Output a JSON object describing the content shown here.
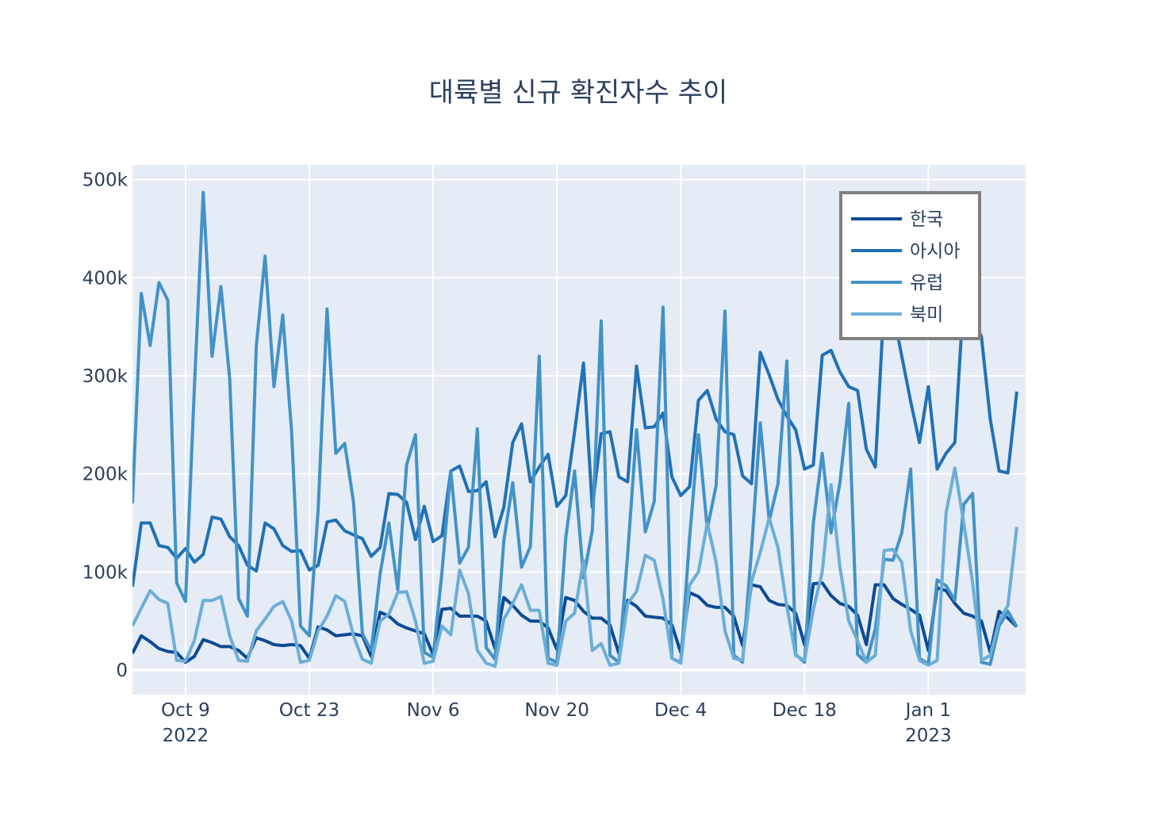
{
  "chart_data": {
    "type": "line",
    "title": "대륙별 신규 확진자수 추이",
    "xlabel": "",
    "ylabel": "",
    "x_start": "2022-10-03",
    "x_range": [
      "2022-10-03",
      "2023-01-12"
    ],
    "ylim": [
      -25000,
      515000
    ],
    "grid": true,
    "legend_position": "top-right",
    "x_ticks": [
      {
        "date": "2022-10-09",
        "label": "Oct 9",
        "sublabel": "2022"
      },
      {
        "date": "2022-10-23",
        "label": "Oct 23",
        "sublabel": ""
      },
      {
        "date": "2022-11-06",
        "label": "Nov 6",
        "sublabel": ""
      },
      {
        "date": "2022-11-20",
        "label": "Nov 20",
        "sublabel": ""
      },
      {
        "date": "2022-12-04",
        "label": "Dec 4",
        "sublabel": ""
      },
      {
        "date": "2022-12-18",
        "label": "Dec 18",
        "sublabel": ""
      },
      {
        "date": "2023-01-01",
        "label": "Jan 1",
        "sublabel": "2023"
      }
    ],
    "y_ticks": [
      {
        "value": 0,
        "label": "0"
      },
      {
        "value": 100000,
        "label": "100k"
      },
      {
        "value": 200000,
        "label": "200k"
      },
      {
        "value": 300000,
        "label": "300k"
      },
      {
        "value": 400000,
        "label": "400k"
      },
      {
        "value": 500000,
        "label": "500k"
      }
    ],
    "series": [
      {
        "name": "한국",
        "color": "#0d4a94",
        "values": [
          17000,
          35000,
          29000,
          22000,
          19000,
          18000,
          8000,
          14000,
          31000,
          28000,
          24000,
          24000,
          20000,
          12000,
          33000,
          30000,
          26000,
          25000,
          26000,
          25000,
          12000,
          44000,
          41000,
          35000,
          36000,
          37000,
          35000,
          14000,
          59000,
          55000,
          47000,
          43000,
          40000,
          37000,
          16000,
          62000,
          63000,
          55000,
          55000,
          55000,
          50000,
          22000,
          74000,
          66000,
          56000,
          50000,
          50000,
          43000,
          21000,
          74000,
          71000,
          60000,
          53000,
          53000,
          46000,
          17000,
          71000,
          65000,
          55000,
          54000,
          53000,
          46000,
          18000,
          79000,
          75000,
          66000,
          64000,
          64000,
          55000,
          25000,
          87000,
          85000,
          71000,
          67000,
          66000,
          58000,
          26000,
          88000,
          89000,
          76000,
          68000,
          65000,
          56000,
          26000,
          87000,
          87000,
          73000,
          67000,
          62000,
          56000,
          20000,
          84000,
          81000,
          68000,
          58000,
          55000,
          50000,
          18000,
          60000,
          53000,
          44000
        ]
      },
      {
        "name": "아시아",
        "color": "#2171b5",
        "values": [
          85000,
          150000,
          150000,
          127000,
          125000,
          114000,
          124000,
          110000,
          118000,
          156000,
          154000,
          136000,
          127000,
          107000,
          101000,
          150000,
          144000,
          127000,
          121000,
          122000,
          102000,
          107000,
          151000,
          153000,
          142000,
          138000,
          134000,
          116000,
          125000,
          180000,
          179000,
          171000,
          133000,
          167000,
          131000,
          137000,
          203000,
          208000,
          182000,
          183000,
          192000,
          136000,
          166000,
          232000,
          251000,
          192000,
          207000,
          220000,
          167000,
          178000,
          243000,
          313000,
          166000,
          241000,
          243000,
          197000,
          192000,
          310000,
          247000,
          248000,
          262000,
          197000,
          178000,
          187000,
          275000,
          285000,
          256000,
          243000,
          240000,
          198000,
          190000,
          324000,
          301000,
          276000,
          259000,
          245000,
          205000,
          209000,
          321000,
          326000,
          304000,
          289000,
          285000,
          225000,
          207000,
          375000,
          366000,
          320000,
          274000,
          232000,
          289000,
          205000,
          221000,
          232000,
          383000,
          360000,
          340000,
          256000,
          203000,
          201000,
          284000
        ]
      },
      {
        "name": "유럽",
        "color": "#4292c6",
        "values": [
          170000,
          384000,
          331000,
          395000,
          377000,
          89000,
          70000,
          287000,
          487000,
          320000,
          391000,
          297000,
          73000,
          55000,
          330000,
          422000,
          289000,
          362000,
          242000,
          45000,
          35000,
          164000,
          368000,
          221000,
          231000,
          171000,
          37000,
          20000,
          98000,
          150000,
          82000,
          209000,
          240000,
          18000,
          13000,
          100000,
          203000,
          109000,
          125000,
          246000,
          23000,
          11000,
          132000,
          191000,
          105000,
          126000,
          320000,
          12000,
          8000,
          135000,
          203000,
          94000,
          142000,
          356000,
          15000,
          8000,
          118000,
          245000,
          141000,
          172000,
          370000,
          12000,
          8000,
          135000,
          240000,
          144000,
          188000,
          366000,
          15000,
          8000,
          122000,
          252000,
          152000,
          190000,
          315000,
          16000,
          8000,
          150000,
          221000,
          140000,
          191000,
          272000,
          16000,
          8000,
          42000,
          113000,
          112000,
          140000,
          205000,
          12000,
          6000,
          92000,
          86000,
          71000,
          169000,
          180000,
          8000,
          6000,
          45000,
          60000,
          44000
        ]
      },
      {
        "name": "북미",
        "color": "#6baed6",
        "values": [
          45000,
          63000,
          81000,
          72000,
          68000,
          10000,
          9000,
          30000,
          71000,
          71000,
          75000,
          35000,
          10000,
          9000,
          40000,
          52000,
          65000,
          70000,
          50000,
          8000,
          10000,
          40000,
          55000,
          76000,
          70000,
          35000,
          11000,
          7000,
          50000,
          57000,
          79000,
          80000,
          50000,
          7000,
          9000,
          45000,
          36000,
          102000,
          78000,
          20000,
          7000,
          4000,
          52000,
          68000,
          87000,
          61000,
          61000,
          7000,
          5000,
          50000,
          58000,
          112000,
          20000,
          27000,
          5000,
          7000,
          68000,
          80000,
          117000,
          112000,
          72000,
          12000,
          7000,
          87000,
          100000,
          150000,
          110000,
          40000,
          12000,
          10000,
          90000,
          120000,
          155000,
          125000,
          65000,
          15000,
          10000,
          62000,
          100000,
          189000,
          105000,
          50000,
          30000,
          8000,
          15000,
          122000,
          123000,
          110000,
          40000,
          10000,
          5000,
          10000,
          160000,
          206000,
          150000,
          90000,
          10000,
          15000,
          50000,
          66000,
          146000
        ]
      }
    ]
  }
}
